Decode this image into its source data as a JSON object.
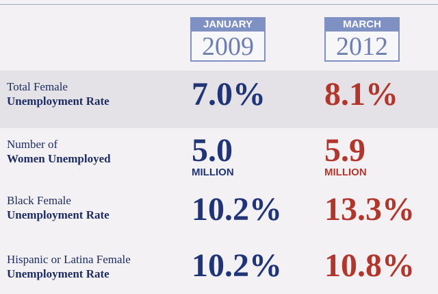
{
  "columns": [
    {
      "month": "JANUARY",
      "year": "2009"
    },
    {
      "month": "MARCH",
      "year": "2012"
    }
  ],
  "rows": [
    {
      "label": "Total Female",
      "label_bold": "Unemployment Rate",
      "values": [
        "7.0%",
        "8.1%"
      ]
    },
    {
      "label": "Number of",
      "label_bold": "Women Unemployed",
      "values": [
        "5.0",
        "5.9"
      ],
      "units": [
        "MILLION",
        "MILLION"
      ]
    },
    {
      "label": "Black Female",
      "label_bold": "Unemployment Rate",
      "values": [
        "10.2%",
        "13.3%"
      ]
    },
    {
      "label": "Hispanic or Latina Female",
      "label_bold": "Unemployment Rate",
      "values": [
        "10.2%",
        "10.8%"
      ]
    }
  ]
}
